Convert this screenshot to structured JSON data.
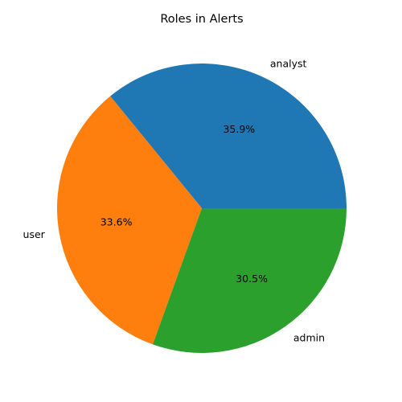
{
  "chart_data": {
    "type": "pie",
    "title": "Roles in Alerts",
    "categories": [
      "analyst",
      "user",
      "admin"
    ],
    "values": [
      35.9,
      33.6,
      30.5
    ],
    "percent_labels": [
      "35.9%",
      "33.6%",
      "30.5%"
    ],
    "colors": [
      "#1f77b4",
      "#ff7f0e",
      "#2ca02c"
    ],
    "start_angle_deg": 0,
    "direction": "counterclockwise",
    "legend": "none",
    "grid": false
  }
}
